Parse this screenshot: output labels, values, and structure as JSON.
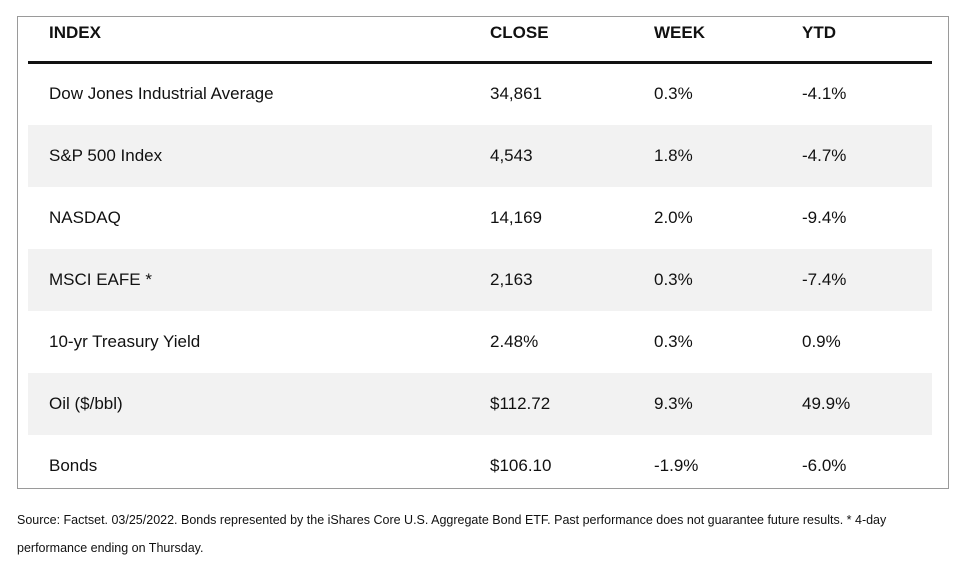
{
  "table": {
    "headers": [
      "INDEX",
      "CLOSE",
      "WEEK",
      "YTD"
    ],
    "rows": [
      [
        "Dow Jones Industrial Average",
        "34,861",
        "0.3%",
        "-4.1%"
      ],
      [
        "S&P 500 Index",
        "4,543",
        "1.8%",
        "-4.7%"
      ],
      [
        "NASDAQ",
        "14,169",
        "2.0%",
        "-9.4%"
      ],
      [
        "MSCI EAFE *",
        "2,163",
        "0.3%",
        "-7.4%"
      ],
      [
        "10-yr Treasury Yield",
        "2.48%",
        "0.3%",
        "0.9%"
      ],
      [
        "Oil ($/bbl)",
        "$112.72",
        "9.3%",
        "49.9%"
      ],
      [
        "Bonds",
        "$106.10",
        "-1.9%",
        "-6.0%"
      ]
    ]
  },
  "footnote": "Source: Factset. 03/25/2022. Bonds represented by the iShares Core U.S. Aggregate Bond ETF. Past performance does not guarantee future results. * 4-day performance ending on Thursday."
}
